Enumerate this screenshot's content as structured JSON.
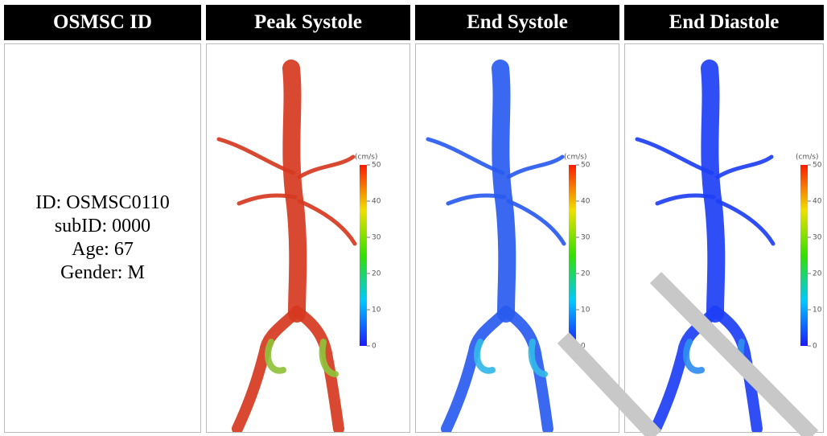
{
  "table": {
    "header": [
      "OSMSC ID",
      "Peak Systole",
      "End Systole",
      "End Diastole"
    ],
    "rows": [
      {
        "id_lines": [
          "ID: OSMSC0110",
          "subID: 0000",
          "Age: 67",
          "Gender: M"
        ],
        "panels": [
          {
            "colorbar_unit": "(cm/s)",
            "colorbar_ticks": [
              50,
              40,
              30,
              20,
              10,
              0
            ]
          },
          {
            "colorbar_unit": "(cm/s)",
            "colorbar_ticks": [
              50,
              40,
              30,
              20,
              10,
              0
            ]
          },
          {
            "colorbar_unit": "(cm/s)",
            "colorbar_ticks": [
              50,
              40,
              30,
              20,
              10,
              0
            ]
          }
        ]
      }
    ]
  }
}
